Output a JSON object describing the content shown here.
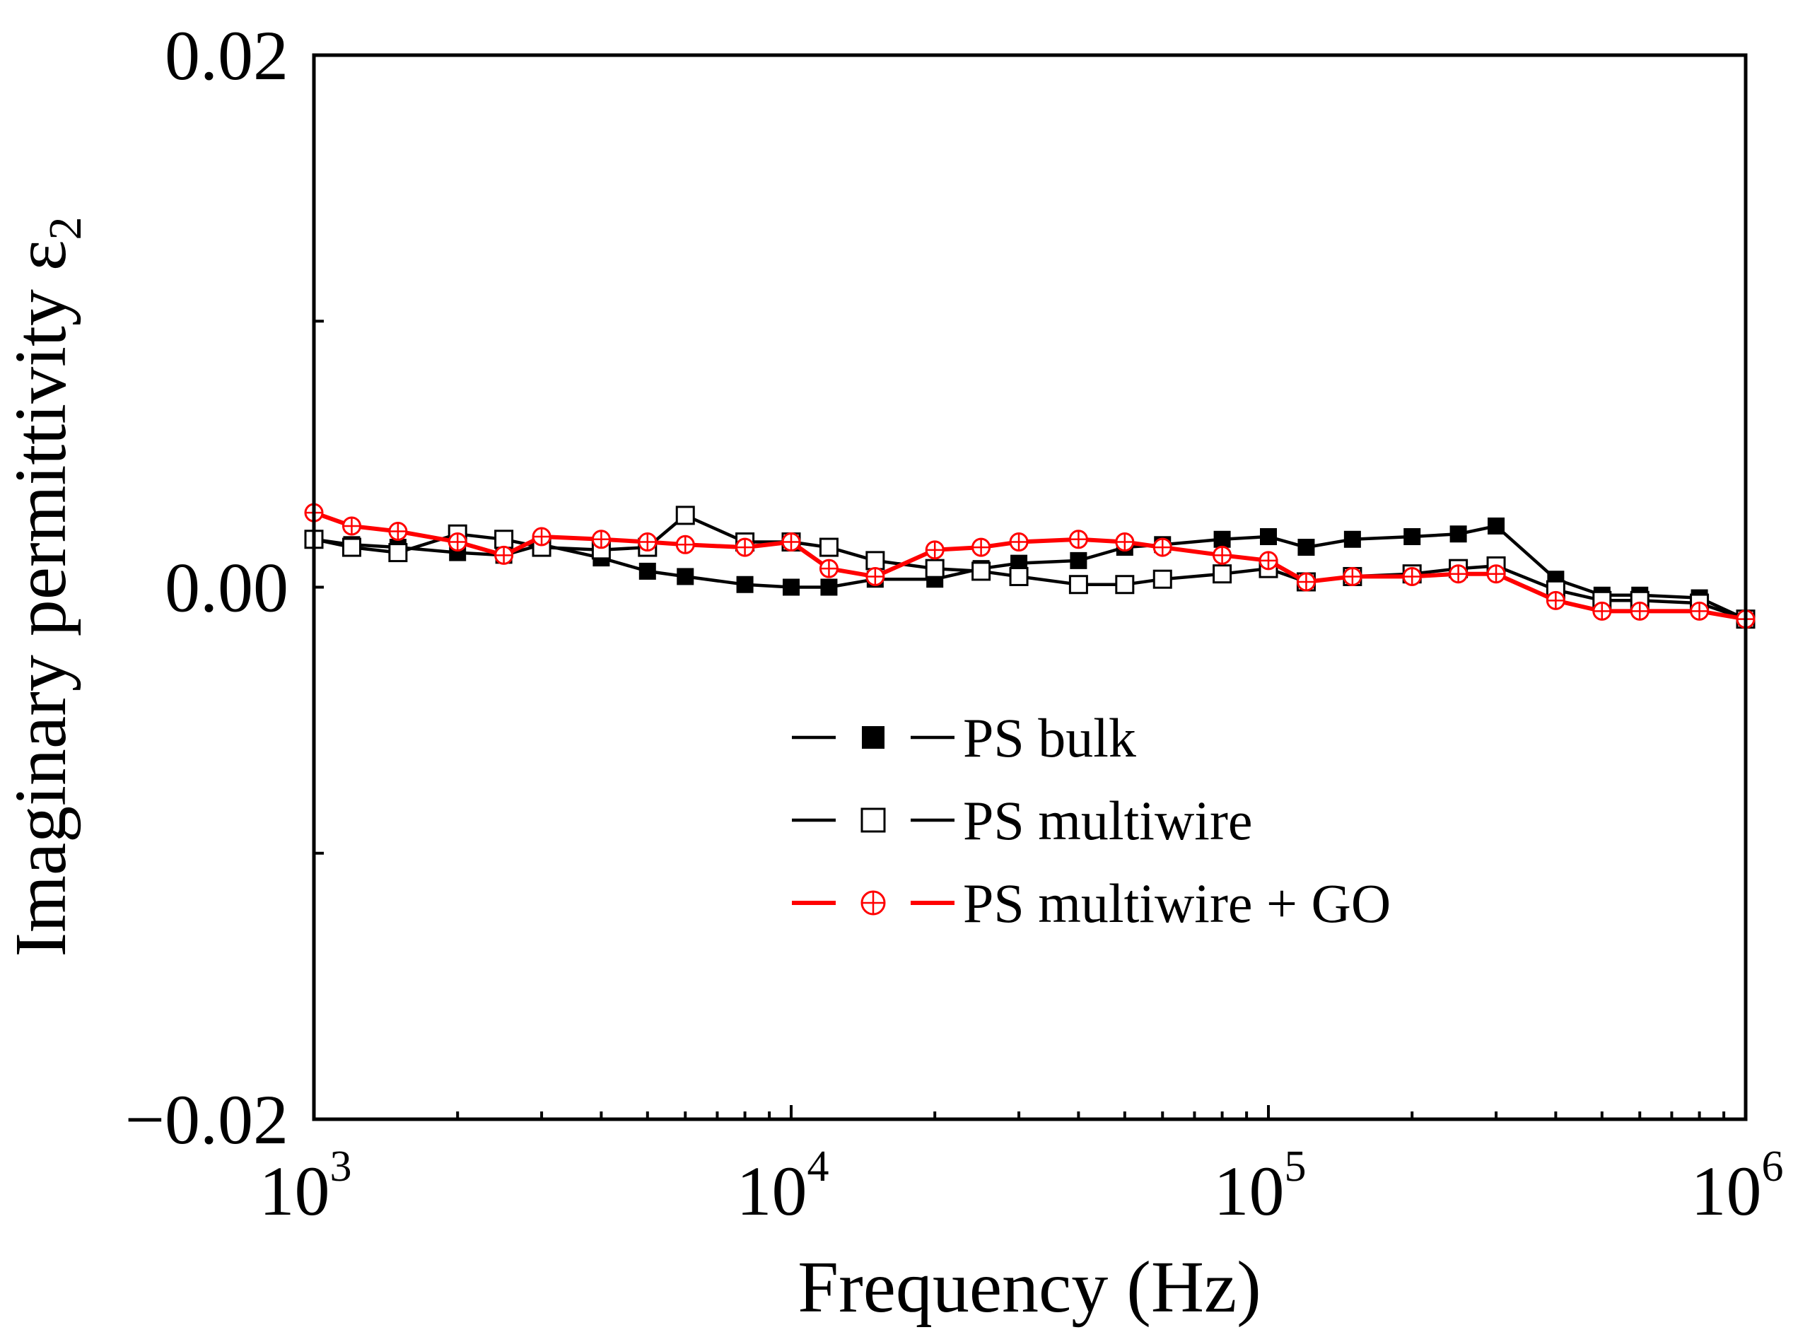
{
  "chart_data": {
    "type": "line",
    "title": "",
    "xlabel": "Frequency (Hz)",
    "ylabel": "Imaginary permittivity ε",
    "ylabel_subscript": "2",
    "xscale": "log",
    "xlim": [
      1000,
      1000000
    ],
    "ylim": [
      -0.02,
      0.02
    ],
    "x_ticks": [
      {
        "base": "10",
        "exp": "3"
      },
      {
        "base": "10",
        "exp": "4"
      },
      {
        "base": "10",
        "exp": "5"
      },
      {
        "base": "10",
        "exp": "6"
      }
    ],
    "y_ticks": [
      "0.02",
      "0.00",
      "−0.02"
    ],
    "legend_position": "center-bottom",
    "x": [
      1000,
      1200,
      1500,
      2000,
      2500,
      3000,
      4000,
      5000,
      6000,
      8000,
      10000,
      12000,
      15000,
      20000,
      25000,
      30000,
      40000,
      50000,
      60000,
      80000,
      100000,
      120000,
      150000,
      200000,
      250000,
      300000,
      400000,
      500000,
      600000,
      800000,
      1000000
    ],
    "series": [
      {
        "name": "PS bulk",
        "color": "#000000",
        "marker": "filled-square",
        "values": [
          0.0018,
          0.0016,
          0.0015,
          0.0013,
          0.0012,
          0.0016,
          0.0011,
          0.0006,
          0.0004,
          0.0001,
          0.0,
          0.0,
          0.0003,
          0.0003,
          0.0007,
          0.0009,
          0.001,
          0.0015,
          0.0016,
          0.0018,
          0.0019,
          0.0015,
          0.0018,
          0.0019,
          0.002,
          0.0023,
          0.0003,
          -0.0003,
          -0.0003,
          -0.0004,
          -0.0012
        ]
      },
      {
        "name": "PS multiwire",
        "color": "#000000",
        "marker": "open-square",
        "values": [
          0.0018,
          0.0015,
          0.0013,
          0.002,
          0.0018,
          0.0015,
          0.0014,
          0.0015,
          0.0027,
          0.0017,
          0.0017,
          0.0015,
          0.001,
          0.0007,
          0.0006,
          0.0004,
          0.0001,
          0.0001,
          0.0003,
          0.0005,
          0.0007,
          0.0002,
          0.0004,
          0.0005,
          0.0007,
          0.0008,
          -0.0001,
          -0.0005,
          -0.0005,
          -0.0006,
          -0.0012
        ]
      },
      {
        "name": "PS multiwire + GO",
        "color": "#ff0000",
        "marker": "circle-plus",
        "values": [
          0.0028,
          0.0023,
          0.0021,
          0.0017,
          0.0012,
          0.0019,
          0.0018,
          0.0017,
          0.0016,
          0.0015,
          0.0017,
          0.0007,
          0.0004,
          0.0014,
          0.0015,
          0.0017,
          0.0018,
          0.0017,
          0.0015,
          0.0012,
          0.001,
          0.0002,
          0.0004,
          0.0004,
          0.0005,
          0.0005,
          -0.0005,
          -0.0009,
          -0.0009,
          -0.0009,
          -0.0012
        ]
      }
    ]
  }
}
